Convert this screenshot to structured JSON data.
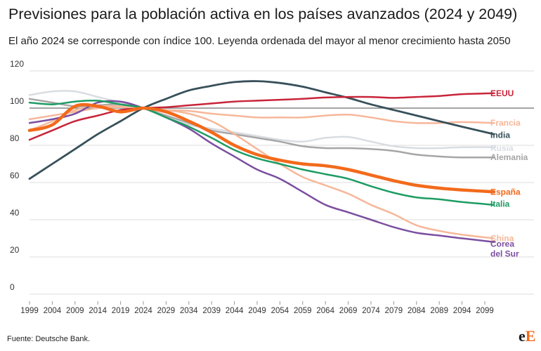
{
  "title": "Previsiones para la población activa en los países avanzados (2024 y 2049)",
  "subtitle": "El año 2024 se corresponde con índice 100. Leyenda ordenada del mayor al menor crecimiento hasta 2050",
  "source": "Fuente: Deutsche Bank.",
  "logo": {
    "part1": "e",
    "part2": "E"
  },
  "chart_data": {
    "type": "line",
    "ylim": [
      0,
      120
    ],
    "xlim": [
      1999,
      2104
    ],
    "yticks": [
      0,
      20,
      40,
      60,
      80,
      100,
      120
    ],
    "xticks": [
      1999,
      2004,
      2009,
      2014,
      2019,
      2024,
      2029,
      2034,
      2039,
      2044,
      2049,
      2054,
      2059,
      2064,
      2069,
      2074,
      2079,
      2084,
      2089,
      2094,
      2099
    ],
    "reference_line": 100,
    "grid": true,
    "legend": "end-labels",
    "series": [
      {
        "name": "EEUU",
        "color": "#c8253a",
        "width": 2.5,
        "label_lines": [
          "EEUU"
        ],
        "points": [
          [
            1999,
            83
          ],
          [
            2004,
            88
          ],
          [
            2009,
            93
          ],
          [
            2014,
            96
          ],
          [
            2019,
            99
          ],
          [
            2024,
            100
          ],
          [
            2029,
            100.5
          ],
          [
            2034,
            101.5
          ],
          [
            2039,
            102.5
          ],
          [
            2044,
            103.5
          ],
          [
            2049,
            104
          ],
          [
            2054,
            104.5
          ],
          [
            2059,
            105
          ],
          [
            2064,
            105.7
          ],
          [
            2069,
            106
          ],
          [
            2074,
            106
          ],
          [
            2079,
            105.5
          ],
          [
            2084,
            106
          ],
          [
            2089,
            106.5
          ],
          [
            2094,
            107.5
          ],
          [
            2101,
            108
          ]
        ]
      },
      {
        "name": "Francia",
        "color": "#f6b79a",
        "width": 2.5,
        "label_lines": [
          "Francia"
        ],
        "points": [
          [
            1999,
            94
          ],
          [
            2004,
            96
          ],
          [
            2009,
            98
          ],
          [
            2014,
            100
          ],
          [
            2019,
            100.5
          ],
          [
            2024,
            100
          ],
          [
            2029,
            99
          ],
          [
            2034,
            98.5
          ],
          [
            2039,
            97
          ],
          [
            2044,
            96
          ],
          [
            2049,
            95
          ],
          [
            2054,
            95
          ],
          [
            2059,
            95
          ],
          [
            2064,
            96
          ],
          [
            2069,
            96.5
          ],
          [
            2074,
            95
          ],
          [
            2079,
            93
          ],
          [
            2084,
            92
          ],
          [
            2089,
            92
          ],
          [
            2094,
            92.5
          ],
          [
            2101,
            92
          ]
        ]
      },
      {
        "name": "India",
        "color": "#37505a",
        "width": 2.8,
        "label_lines": [
          "India"
        ],
        "points": [
          [
            1999,
            62
          ],
          [
            2004,
            70
          ],
          [
            2009,
            78
          ],
          [
            2014,
            86
          ],
          [
            2019,
            93
          ],
          [
            2024,
            100
          ],
          [
            2029,
            105
          ],
          [
            2034,
            109.5
          ],
          [
            2039,
            112
          ],
          [
            2044,
            114
          ],
          [
            2049,
            114.5
          ],
          [
            2054,
            113.5
          ],
          [
            2059,
            111.5
          ],
          [
            2064,
            108.5
          ],
          [
            2069,
            105.5
          ],
          [
            2074,
            102
          ],
          [
            2079,
            99
          ],
          [
            2084,
            96
          ],
          [
            2089,
            93
          ],
          [
            2094,
            90
          ],
          [
            2101,
            86
          ]
        ]
      },
      {
        "name": "Rusia",
        "color": "#d9dde2",
        "width": 2.5,
        "label_lines": [
          "Rusia"
        ],
        "points": [
          [
            1999,
            107
          ],
          [
            2004,
            109
          ],
          [
            2009,
            109
          ],
          [
            2014,
            106
          ],
          [
            2019,
            103
          ],
          [
            2024,
            100
          ],
          [
            2029,
            95
          ],
          [
            2034,
            91
          ],
          [
            2039,
            89
          ],
          [
            2044,
            87
          ],
          [
            2049,
            85
          ],
          [
            2054,
            83
          ],
          [
            2059,
            82
          ],
          [
            2064,
            84
          ],
          [
            2069,
            84.5
          ],
          [
            2074,
            82
          ],
          [
            2079,
            79.5
          ],
          [
            2084,
            78.5
          ],
          [
            2089,
            78.5
          ],
          [
            2094,
            79
          ],
          [
            2101,
            79
          ]
        ]
      },
      {
        "name": "Alemania",
        "color": "#a6a6a6",
        "width": 2.5,
        "label_lines": [
          "Alemania"
        ],
        "points": [
          [
            1999,
            105
          ],
          [
            2004,
            103
          ],
          [
            2009,
            101
          ],
          [
            2014,
            101.5
          ],
          [
            2019,
            102
          ],
          [
            2024,
            100
          ],
          [
            2029,
            96
          ],
          [
            2034,
            92
          ],
          [
            2039,
            88
          ],
          [
            2044,
            86
          ],
          [
            2049,
            84
          ],
          [
            2054,
            82
          ],
          [
            2059,
            79.5
          ],
          [
            2064,
            78.5
          ],
          [
            2069,
            78.5
          ],
          [
            2074,
            78
          ],
          [
            2079,
            77
          ],
          [
            2084,
            75
          ],
          [
            2089,
            74
          ],
          [
            2094,
            73.5
          ],
          [
            2101,
            73.5
          ]
        ]
      },
      {
        "name": "China",
        "color": "#f6b79a",
        "width": 2.5,
        "label_lines": [
          "China"
        ],
        "points": [
          [
            1999,
            88
          ],
          [
            2004,
            93
          ],
          [
            2009,
            99
          ],
          [
            2014,
            101
          ],
          [
            2019,
            101
          ],
          [
            2024,
            100
          ],
          [
            2029,
            99
          ],
          [
            2034,
            97
          ],
          [
            2039,
            93
          ],
          [
            2044,
            86
          ],
          [
            2049,
            78
          ],
          [
            2054,
            70
          ],
          [
            2059,
            63
          ],
          [
            2064,
            58.5
          ],
          [
            2069,
            54
          ],
          [
            2074,
            48
          ],
          [
            2079,
            43
          ],
          [
            2084,
            37
          ],
          [
            2089,
            34
          ],
          [
            2094,
            32
          ],
          [
            2101,
            30
          ]
        ]
      },
      {
        "name": "Corea del Sur",
        "color": "#7b4fa0",
        "width": 2.5,
        "label_lines": [
          "Corea",
          "del Sur"
        ],
        "points": [
          [
            1999,
            92
          ],
          [
            2004,
            94
          ],
          [
            2009,
            97
          ],
          [
            2014,
            103
          ],
          [
            2019,
            103.5
          ],
          [
            2024,
            100
          ],
          [
            2029,
            95
          ],
          [
            2034,
            89
          ],
          [
            2039,
            81
          ],
          [
            2044,
            74
          ],
          [
            2049,
            67
          ],
          [
            2054,
            62
          ],
          [
            2059,
            55
          ],
          [
            2064,
            48
          ],
          [
            2069,
            44
          ],
          [
            2074,
            40
          ],
          [
            2079,
            36
          ],
          [
            2084,
            33
          ],
          [
            2089,
            31.5
          ],
          [
            2094,
            30
          ],
          [
            2101,
            28
          ]
        ]
      },
      {
        "name": "Italia",
        "color": "#1d9c63",
        "width": 2.5,
        "label_lines": [
          "Italia"
        ],
        "points": [
          [
            1999,
            103
          ],
          [
            2004,
            102
          ],
          [
            2009,
            103.5
          ],
          [
            2014,
            104
          ],
          [
            2019,
            102
          ],
          [
            2024,
            100
          ],
          [
            2029,
            95
          ],
          [
            2034,
            90
          ],
          [
            2039,
            84
          ],
          [
            2044,
            77.5
          ],
          [
            2049,
            73
          ],
          [
            2054,
            70
          ],
          [
            2059,
            67
          ],
          [
            2064,
            64.5
          ],
          [
            2069,
            62
          ],
          [
            2074,
            58
          ],
          [
            2079,
            54.5
          ],
          [
            2084,
            52
          ],
          [
            2089,
            51
          ],
          [
            2094,
            49.5
          ],
          [
            2101,
            48
          ]
        ]
      },
      {
        "name": "España",
        "color": "#f26a1b",
        "width": 4.5,
        "label_lines": [
          "España"
        ],
        "points": [
          [
            1999,
            88
          ],
          [
            2004,
            91
          ],
          [
            2009,
            101
          ],
          [
            2014,
            101
          ],
          [
            2019,
            98
          ],
          [
            2024,
            100
          ],
          [
            2029,
            98
          ],
          [
            2034,
            93
          ],
          [
            2039,
            87
          ],
          [
            2044,
            80
          ],
          [
            2049,
            75
          ],
          [
            2054,
            72
          ],
          [
            2059,
            70
          ],
          [
            2064,
            69
          ],
          [
            2069,
            67
          ],
          [
            2074,
            64
          ],
          [
            2079,
            61
          ],
          [
            2084,
            58.5
          ],
          [
            2089,
            57
          ],
          [
            2094,
            56
          ],
          [
            2101,
            55
          ]
        ]
      }
    ],
    "draw_order": [
      "Rusia",
      "Alemania",
      "Francia",
      "China",
      "Corea del Sur",
      "Italia",
      "India",
      "EEUU",
      "España"
    ],
    "label_y": {
      "EEUU": 108,
      "Francia": 92,
      "India": 85.5,
      "Rusia": 78.5,
      "Alemania": 73.5,
      "España": 55,
      "Italia": 48.5,
      "China": 30,
      "Corea del Sur": 27
    }
  }
}
